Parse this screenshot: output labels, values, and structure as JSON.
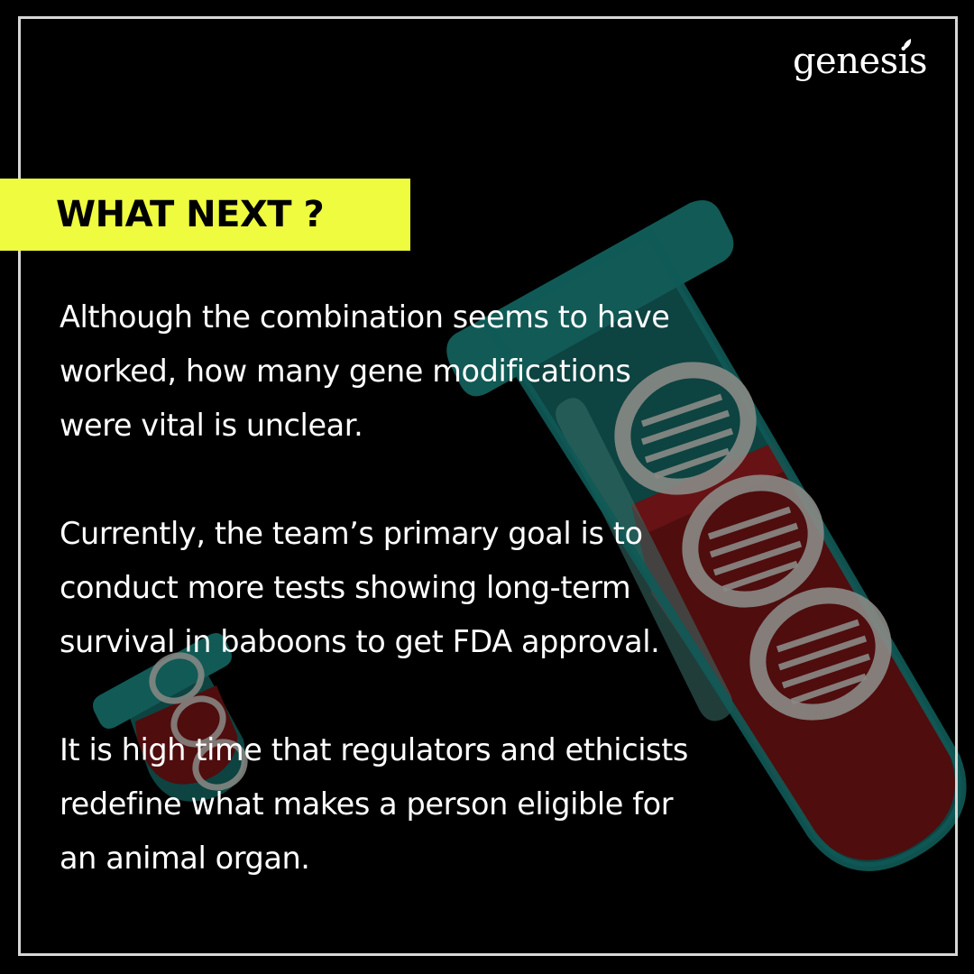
{
  "brand": {
    "logo_text": "genesis"
  },
  "slide": {
    "heading": "WHAT NEXT ?",
    "paragraphs": [
      "Although the combination seems to have\nworked, how many gene modifications\nwere vital is unclear.",
      "Currently, the team’s primary goal is to\nconduct more tests showing long-term\nsurvival in baboons to get FDA approval.",
      "It is high time that regulators and ethicists\nredefine what makes a person eligible for\nan animal organ."
    ]
  },
  "colors": {
    "background": "#000000",
    "heading_highlight": "#eefb3f",
    "text": "#ffffff",
    "frame": "#d6d6d6",
    "tube_glass": "#0f4f4c",
    "tube_liquid": "#5a0f10",
    "dna": "#8a8a86"
  },
  "icons": {
    "background_illustration": "test-tube-dna-icon",
    "logo_mark": "leaf-icon"
  }
}
